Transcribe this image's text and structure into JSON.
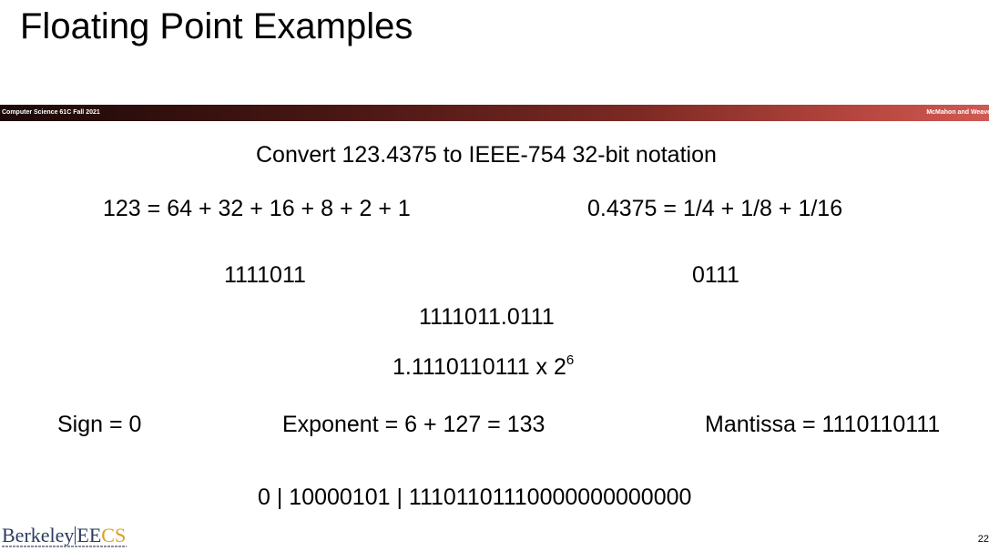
{
  "title": "Floating Point Examples",
  "band": {
    "left": "Computer Science 61C Fall 2021",
    "right": "McMahon and Weave"
  },
  "content": {
    "heading": "Convert 123.4375 to IEEE-754 32-bit notation",
    "integer_sum": "123 = 64 + 32 + 16 + 8 + 2 + 1",
    "fraction_sum": "0.4375 = 1/4 + 1/8 + 1/16",
    "integer_binary": "1111011",
    "fraction_binary": "0111",
    "combined_binary": "1111011.0111",
    "normalized": "1.1110110111 x 2",
    "exponent_power": "6",
    "sign": "Sign = 0",
    "exponent": "Exponent = 6 + 127 = 133",
    "mantissa": "Mantissa = 1110110111",
    "result": "0 | 10000101 | 11101101110000000000000"
  },
  "footer": {
    "logo_berkeley": "Berkeley",
    "logo_ee": "EE",
    "logo_cs": "CS",
    "page_number": "22"
  }
}
